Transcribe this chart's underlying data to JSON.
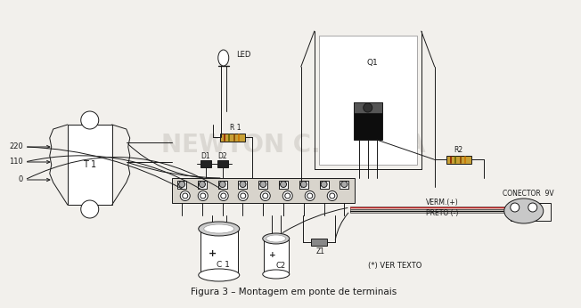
{
  "bg_color": "#f2f0ec",
  "line_color": "#1a1a1a",
  "title": "Figura 3 – Montagem em ponte de terminais",
  "watermark": "NEWTON C. BRAGA",
  "labels": {
    "T1": "T 1",
    "LED": "LED",
    "R1": "R 1",
    "D1": "D1",
    "D2": "D2",
    "Q1": "Q1",
    "R2": "R2",
    "C1": "C 1",
    "C2": "C2",
    "Z1": "Z1",
    "v220": "220",
    "v110": "110",
    "v0": "0",
    "VERM": "VERM.(+)",
    "PRETO": "PRETO (-)",
    "CONECTOR": "CONECTOR  9V",
    "STAR": "(*) VER TEXTO"
  },
  "scale": 1.0
}
